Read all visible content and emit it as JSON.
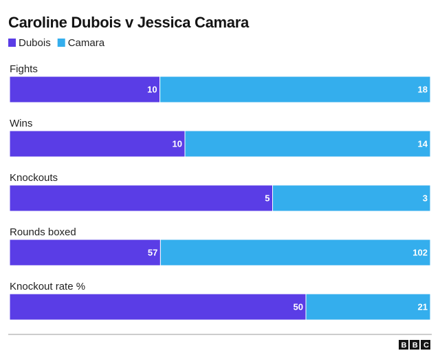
{
  "chart_data": {
    "type": "bar",
    "orientation": "horizontal",
    "stacked": true,
    "normalized": true,
    "title": "Caroline Dubois v Jessica Camara",
    "categories": [
      "Fights",
      "Wins",
      "Knockouts",
      "Rounds boxed",
      "Knockout rate %"
    ],
    "series": [
      {
        "name": "Dubois",
        "color": "#5a3de6",
        "values": [
          10,
          10,
          5,
          57,
          50
        ]
      },
      {
        "name": "Camara",
        "color": "#34aeed",
        "values": [
          18,
          14,
          3,
          102,
          21
        ]
      }
    ],
    "logo": "BBC"
  }
}
